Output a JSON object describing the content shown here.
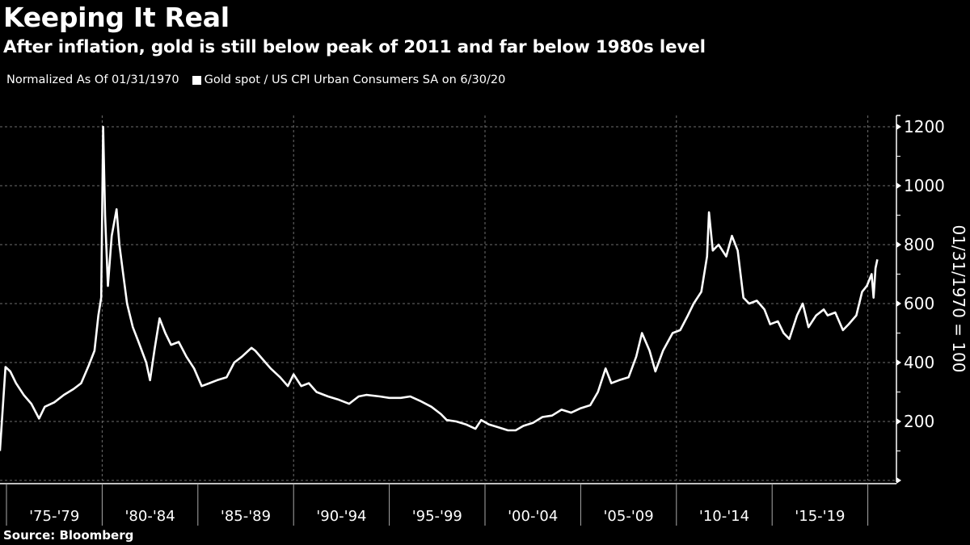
{
  "header": {
    "title": "Keeping It Real",
    "subtitle": "After inflation, gold is still below peak of 2011 and far below 1980s level",
    "normalization_note": "Normalized As Of 01/31/1970",
    "legend_label": "Gold spot / US CPI Urban Consumers SA on 6/30/20"
  },
  "footer": {
    "source": "Source: Bloomberg"
  },
  "colors": {
    "background": "#000000",
    "line": "#ffffff",
    "grid": "#6e6e6e",
    "text": "#ffffff"
  },
  "chart_data": {
    "type": "line",
    "title": "Keeping It Real",
    "subtitle": "After inflation, gold is still below peak of 2011 and far below 1980s level",
    "xlabel": "",
    "ylabel": "01/31/1970 = 100",
    "ylim": [
      0,
      1300
    ],
    "xlim": [
      1974.66,
      2021.7
    ],
    "y_ticks": [
      200,
      400,
      600,
      800,
      1000,
      1200
    ],
    "y_minor_ticks": [
      100,
      300,
      500,
      700,
      900,
      1100,
      1300
    ],
    "y_gridlines": [
      0,
      200,
      400,
      600,
      800,
      1000,
      1200
    ],
    "x_gridlines": [
      1980,
      1990,
      2000,
      2010,
      2020
    ],
    "x_boundaries": [
      1975,
      1980,
      1985,
      1990,
      1995,
      2000,
      2005,
      2010,
      2015,
      2020
    ],
    "x_tick_labels": [
      "'75-'79",
      "'80-'84",
      "'85-'89",
      "'90-'94",
      "'95-'99",
      "'00-'04",
      "'05-'09",
      "'10-'14",
      "'15-'19"
    ],
    "y_axis_position": "right",
    "grid": true,
    "legend": "top-left",
    "series": [
      {
        "name": "Gold spot / US CPI Urban Consumers SA on 6/30/20",
        "x": [
          1974.66,
          1974.95,
          1975.2,
          1975.5,
          1975.9,
          1976.3,
          1976.7,
          1977.0,
          1977.5,
          1978.0,
          1978.5,
          1978.9,
          1979.3,
          1979.6,
          1979.8,
          1979.95,
          1980.05,
          1980.15,
          1980.3,
          1980.5,
          1980.75,
          1980.9,
          1981.1,
          1981.3,
          1981.6,
          1981.9,
          1982.3,
          1982.5,
          1982.75,
          1983.0,
          1983.3,
          1983.6,
          1984.0,
          1984.4,
          1984.8,
          1985.2,
          1985.6,
          1986.0,
          1986.5,
          1986.9,
          1987.3,
          1987.8,
          1988.0,
          1988.4,
          1988.8,
          1989.3,
          1989.7,
          1990.0,
          1990.4,
          1990.8,
          1991.2,
          1991.8,
          1992.3,
          1992.9,
          1993.4,
          1993.8,
          1994.5,
          1995.0,
          1995.6,
          1996.1,
          1996.6,
          1997.2,
          1997.7,
          1998.0,
          1998.5,
          1999.0,
          1999.5,
          1999.8,
          2000.2,
          2000.7,
          2001.2,
          2001.6,
          2002.0,
          2002.5,
          2003.0,
          2003.5,
          2004.0,
          2004.5,
          2005.0,
          2005.5,
          2005.9,
          2006.3,
          2006.6,
          2007.0,
          2007.5,
          2007.9,
          2008.2,
          2008.6,
          2008.9,
          2009.3,
          2009.8,
          2010.2,
          2010.6,
          2010.9,
          2011.3,
          2011.6,
          2011.7,
          2011.9,
          2012.2,
          2012.6,
          2012.9,
          2013.2,
          2013.5,
          2013.8,
          2014.2,
          2014.6,
          2014.9,
          2015.3,
          2015.6,
          2015.9,
          2016.3,
          2016.6,
          2016.9,
          2017.3,
          2017.7,
          2017.9,
          2018.3,
          2018.7,
          2019.0,
          2019.4,
          2019.7,
          2019.95,
          2020.2,
          2020.3,
          2020.4,
          2020.5
        ],
        "y": [
          100,
          385,
          370,
          330,
          290,
          260,
          210,
          250,
          265,
          290,
          310,
          330,
          390,
          440,
          560,
          620,
          1200,
          900,
          660,
          830,
          920,
          800,
          700,
          600,
          520,
          470,
          400,
          340,
          450,
          550,
          500,
          460,
          470,
          420,
          380,
          320,
          330,
          340,
          350,
          400,
          420,
          450,
          440,
          410,
          380,
          350,
          320,
          360,
          320,
          330,
          300,
          285,
          275,
          260,
          285,
          290,
          285,
          280,
          280,
          285,
          270,
          250,
          225,
          205,
          200,
          190,
          175,
          205,
          190,
          180,
          170,
          170,
          185,
          195,
          215,
          220,
          240,
          230,
          245,
          255,
          300,
          380,
          330,
          340,
          350,
          420,
          500,
          440,
          370,
          440,
          500,
          510,
          560,
          600,
          640,
          760,
          910,
          780,
          800,
          760,
          830,
          780,
          620,
          600,
          610,
          580,
          530,
          540,
          500,
          480,
          560,
          600,
          520,
          560,
          580,
          560,
          570,
          510,
          530,
          560,
          640,
          660,
          700,
          620,
          720,
          750
        ]
      }
    ]
  }
}
